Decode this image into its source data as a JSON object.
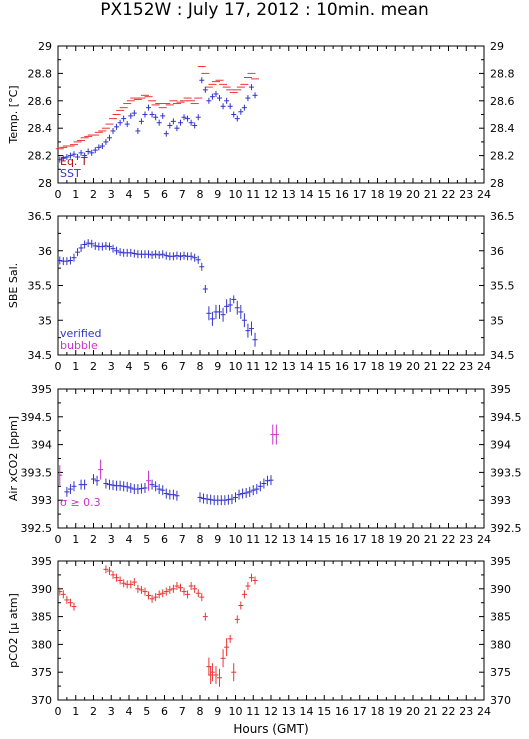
{
  "title": "PX152W : July 17, 2012 : 10min. mean",
  "xlabel": "Hours (GMT)",
  "colors": {
    "blue": "#3333cc",
    "red": "#ee3333",
    "magenta": "#cc33cc",
    "darkred": "#aa1111",
    "axis": "#000000"
  },
  "chart_data": [
    {
      "type": "scatter",
      "ylabel": "Temp. [°C]",
      "xlim": [
        0,
        24
      ],
      "ylim": [
        28,
        29
      ],
      "xticks": [
        0,
        1,
        2,
        3,
        4,
        5,
        6,
        7,
        8,
        9,
        10,
        11,
        12,
        13,
        14,
        15,
        16,
        17,
        18,
        19,
        20,
        21,
        22,
        23,
        24
      ],
      "yticks": [
        28,
        28.2,
        28.4,
        28.6,
        28.8,
        29
      ],
      "ytick_labels": [
        "28",
        "28.2",
        "28.4",
        "28.6",
        "28.8",
        "29"
      ],
      "legend": [
        {
          "label": "Eq. T",
          "color": "#aa1111"
        },
        {
          "label": "SST",
          "color": "#3333cc"
        }
      ],
      "legend_position": "bottom-left",
      "series": [
        {
          "name": "Eq. T",
          "color": "#ee3333",
          "marker": "dash",
          "x": [
            0.1,
            0.3,
            0.5,
            0.7,
            0.9,
            1.1,
            1.3,
            1.5,
            1.7,
            1.9,
            2.1,
            2.3,
            2.5,
            2.7,
            2.9,
            3.1,
            3.3,
            3.5,
            3.7,
            3.9,
            4.1,
            4.3,
            4.5,
            4.7,
            4.9,
            5.1,
            5.3,
            5.5,
            5.7,
            5.9,
            6.1,
            6.3,
            6.5,
            6.7,
            6.9,
            7.1,
            7.3,
            7.5,
            7.7,
            7.9,
            8.1,
            8.3,
            8.5,
            8.7,
            8.9,
            9.1,
            9.3,
            9.5,
            9.7,
            9.9,
            10.1,
            10.3,
            10.5,
            10.7,
            10.9,
            11.1
          ],
          "y": [
            28.25,
            28.26,
            28.27,
            28.27,
            28.28,
            28.3,
            28.31,
            28.33,
            28.34,
            28.35,
            28.35,
            28.37,
            28.38,
            28.4,
            28.43,
            28.47,
            28.5,
            28.53,
            28.55,
            28.58,
            28.6,
            28.62,
            28.61,
            28.62,
            28.64,
            28.63,
            28.6,
            28.57,
            28.58,
            28.55,
            28.58,
            28.57,
            28.6,
            28.58,
            28.59,
            28.6,
            28.62,
            28.6,
            28.58,
            28.62,
            28.85,
            28.8,
            28.7,
            28.72,
            28.74,
            28.75,
            28.72,
            28.7,
            28.68,
            28.66,
            28.68,
            28.7,
            28.72,
            28.77,
            28.8,
            28.76
          ]
        },
        {
          "name": "SST",
          "color": "#3333cc",
          "marker": "errorbar",
          "x": [
            0.1,
            0.3,
            0.5,
            0.7,
            0.9,
            1.1,
            1.3,
            1.5,
            1.7,
            1.9,
            2.1,
            2.3,
            2.5,
            2.7,
            2.9,
            3.1,
            3.3,
            3.5,
            3.7,
            3.9,
            4.1,
            4.3,
            4.5,
            4.7,
            4.9,
            5.1,
            5.3,
            5.5,
            5.7,
            5.9,
            6.1,
            6.3,
            6.5,
            6.7,
            6.9,
            7.1,
            7.3,
            7.5,
            7.7,
            7.9,
            8.1,
            8.3,
            8.5,
            8.7,
            8.9,
            9.1,
            9.3,
            9.5,
            9.7,
            9.9,
            10.1,
            10.3,
            10.5,
            10.7,
            10.9,
            11.1
          ],
          "y": [
            28.17,
            28.18,
            28.19,
            28.2,
            28.21,
            28.19,
            28.22,
            28.2,
            28.23,
            28.22,
            28.24,
            28.26,
            28.27,
            28.3,
            28.33,
            28.38,
            28.41,
            28.44,
            28.47,
            28.43,
            28.49,
            28.51,
            28.38,
            28.45,
            28.5,
            28.55,
            28.5,
            28.48,
            28.44,
            28.49,
            28.36,
            28.42,
            28.45,
            28.4,
            28.44,
            28.48,
            28.47,
            28.44,
            28.42,
            28.48,
            28.75,
            28.68,
            28.6,
            28.63,
            28.65,
            28.62,
            28.56,
            28.6,
            28.56,
            28.5,
            28.47,
            28.52,
            28.55,
            28.62,
            28.7,
            28.64
          ]
        }
      ]
    },
    {
      "type": "scatter",
      "ylabel": "SBE Sal.",
      "xlim": [
        0,
        24
      ],
      "ylim": [
        34.5,
        36.5
      ],
      "xticks": [
        0,
        1,
        2,
        3,
        4,
        5,
        6,
        7,
        8,
        9,
        10,
        11,
        12,
        13,
        14,
        15,
        16,
        17,
        18,
        19,
        20,
        21,
        22,
        23,
        24
      ],
      "yticks": [
        34.5,
        35,
        35.5,
        36,
        36.5
      ],
      "ytick_labels": [
        "34.5",
        "35",
        "35.5",
        "36",
        "36.5"
      ],
      "legend": [
        {
          "label": "verified",
          "color": "#3333cc"
        },
        {
          "label": "bubble",
          "color": "#cc33cc"
        }
      ],
      "legend_position": "bottom-left",
      "series": [
        {
          "name": "verified",
          "color": "#3333cc",
          "marker": "errorbar",
          "x": [
            0.1,
            0.3,
            0.5,
            0.7,
            0.9,
            1.1,
            1.3,
            1.5,
            1.7,
            1.9,
            2.1,
            2.3,
            2.5,
            2.7,
            2.9,
            3.1,
            3.3,
            3.5,
            3.7,
            3.9,
            4.1,
            4.3,
            4.5,
            4.7,
            4.9,
            5.1,
            5.3,
            5.5,
            5.7,
            5.9,
            6.1,
            6.3,
            6.5,
            6.7,
            6.9,
            7.1,
            7.3,
            7.5,
            7.7,
            7.9,
            8.1,
            8.3,
            8.5,
            8.7,
            8.9,
            9.1,
            9.3,
            9.5,
            9.7,
            9.9,
            10.1,
            10.3,
            10.5,
            10.7,
            10.9,
            11.1
          ],
          "y": [
            35.86,
            35.85,
            35.85,
            35.86,
            35.9,
            35.98,
            36.04,
            36.09,
            36.11,
            36.1,
            36.07,
            36.06,
            36.06,
            36.07,
            36.06,
            36.03,
            36.0,
            35.98,
            35.97,
            35.97,
            35.97,
            35.96,
            35.95,
            35.95,
            35.95,
            35.95,
            35.94,
            35.95,
            35.94,
            35.95,
            35.93,
            35.92,
            35.92,
            35.93,
            35.92,
            35.93,
            35.92,
            35.92,
            35.9,
            35.87,
            35.77,
            35.45,
            35.1,
            35.02,
            35.12,
            35.12,
            35.08,
            35.2,
            35.22,
            35.3,
            35.18,
            35.12,
            35.0,
            34.85,
            34.88,
            34.72
          ]
        }
      ]
    },
    {
      "type": "scatter",
      "ylabel": "Air xCO2 [ppm]",
      "xlim": [
        0,
        24
      ],
      "ylim": [
        392.5,
        395
      ],
      "xticks": [
        0,
        1,
        2,
        3,
        4,
        5,
        6,
        7,
        8,
        9,
        10,
        11,
        12,
        13,
        14,
        15,
        16,
        17,
        18,
        19,
        20,
        21,
        22,
        23,
        24
      ],
      "yticks": [
        392.5,
        393,
        393.5,
        394,
        394.5,
        395
      ],
      "ytick_labels": [
        "392.5",
        "393",
        "393.5",
        "394",
        "394.5",
        "395"
      ],
      "annotations": [
        {
          "text": "σ ≥ 0.3",
          "color": "#cc33cc"
        }
      ],
      "series": [
        {
          "name": "",
          "color": "#3333cc",
          "marker": "errorbar",
          "x": [
            0.5,
            0.7,
            0.9,
            1.3,
            1.5,
            2.0,
            2.2,
            2.7,
            2.9,
            3.1,
            3.3,
            3.5,
            3.7,
            3.9,
            4.1,
            4.3,
            4.5,
            4.7,
            4.9,
            5.3,
            5.5,
            5.7,
            5.9,
            6.1,
            6.3,
            6.5,
            6.7,
            8.0,
            8.2,
            8.4,
            8.6,
            8.8,
            9.0,
            9.2,
            9.4,
            9.6,
            9.8,
            10.0,
            10.2,
            10.4,
            10.6,
            10.8,
            11.0,
            11.2,
            11.4,
            11.6,
            11.8,
            12.0
          ],
          "y": [
            393.15,
            393.2,
            393.25,
            393.28,
            393.28,
            393.38,
            393.35,
            393.3,
            393.28,
            393.27,
            393.26,
            393.26,
            393.25,
            393.24,
            393.22,
            393.2,
            393.2,
            393.21,
            393.22,
            393.28,
            393.25,
            393.2,
            393.18,
            393.12,
            393.1,
            393.1,
            393.08,
            393.05,
            393.03,
            393.02,
            393.01,
            393.0,
            393.0,
            393.0,
            393.0,
            393.01,
            393.02,
            393.05,
            393.1,
            393.12,
            393.13,
            393.15,
            393.18,
            393.2,
            393.25,
            393.3,
            393.35,
            393.36
          ]
        },
        {
          "name": "",
          "color": "#cc33cc",
          "marker": "errorbar",
          "x": [
            0.1,
            2.4,
            5.1,
            12.1,
            12.3
          ],
          "y": [
            393.45,
            393.55,
            393.35,
            394.18,
            394.18
          ]
        }
      ]
    },
    {
      "type": "scatter",
      "ylabel": "pCO2 [μ atm]",
      "xlim": [
        0,
        24
      ],
      "ylim": [
        370,
        395
      ],
      "xticks": [
        0,
        1,
        2,
        3,
        4,
        5,
        6,
        7,
        8,
        9,
        10,
        11,
        12,
        13,
        14,
        15,
        16,
        17,
        18,
        19,
        20,
        21,
        22,
        23,
        24
      ],
      "yticks": [
        370,
        375,
        380,
        385,
        390,
        395
      ],
      "ytick_labels": [
        "370",
        "375",
        "380",
        "385",
        "390",
        "395"
      ],
      "series": [
        {
          "name": "",
          "color": "#ee3333",
          "marker": "errorbar",
          "x": [
            0.1,
            0.3,
            0.5,
            0.7,
            0.9,
            2.7,
            2.9,
            3.1,
            3.3,
            3.5,
            3.7,
            3.9,
            4.1,
            4.3,
            4.5,
            4.7,
            4.9,
            5.1,
            5.3,
            5.5,
            5.7,
            5.9,
            6.1,
            6.3,
            6.5,
            6.7,
            6.9,
            7.1,
            7.3,
            7.5,
            7.7,
            7.9,
            8.1,
            8.3,
            8.5,
            8.6,
            8.7,
            8.9,
            9.1,
            9.3,
            9.5,
            9.7,
            9.9,
            10.1,
            10.3,
            10.5,
            10.7,
            10.9,
            11.1
          ],
          "y": [
            389.5,
            389.0,
            388.0,
            387.5,
            386.8,
            393.5,
            393.2,
            392.5,
            392.0,
            391.5,
            391.0,
            390.8,
            390.8,
            391.2,
            390.0,
            389.8,
            389.5,
            388.8,
            388.2,
            388.5,
            389.0,
            389.2,
            389.5,
            389.8,
            390.0,
            390.5,
            390.2,
            389.5,
            389.0,
            390.5,
            390.0,
            389.2,
            388.5,
            385.0,
            376.0,
            374.5,
            375.0,
            374.5,
            374.0,
            377.5,
            379.5,
            381.0,
            375.0,
            384.5,
            387.0,
            389.0,
            390.5,
            392.0,
            391.5
          ]
        }
      ]
    }
  ]
}
